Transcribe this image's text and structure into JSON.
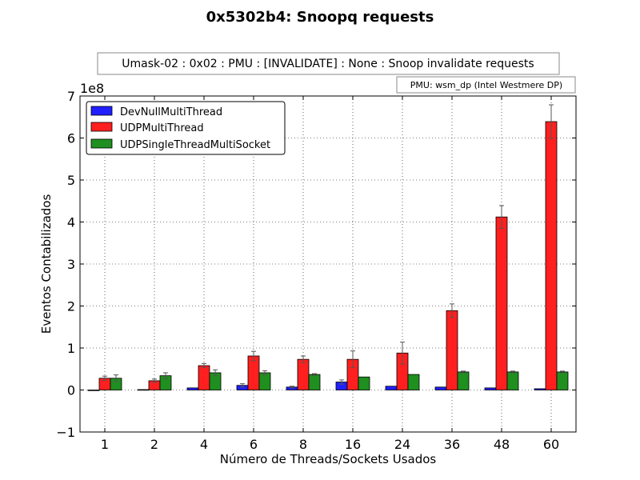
{
  "chart_data": {
    "type": "bar",
    "title": "0x5302b4: Snoopq requests",
    "subtitle": "Umask-02 : 0x02 : PMU : [INVALIDATE] : None : Snoop invalidate requests",
    "annotation": "PMU: wsm_dp (Intel Westmere DP)",
    "xlabel": "Número de Threads/Sockets Usados",
    "ylabel": "Eventos Contabilizados",
    "y_multiplier_label": "1e8",
    "ylim": [
      -1,
      7
    ],
    "yticks": [
      "−1",
      "0",
      "1",
      "2",
      "3",
      "4",
      "5",
      "6",
      "7"
    ],
    "grid": true,
    "legend_position": "upper-left",
    "categories": [
      "1",
      "2",
      "4",
      "6",
      "8",
      "16",
      "24",
      "36",
      "48",
      "60"
    ],
    "series": [
      {
        "name": "DevNullMultiThread",
        "color": "#1f1fff",
        "values": [
          0,
          0.01,
          0.05,
          0.11,
          0.07,
          0.19,
          0.09,
          0.07,
          0.05,
          0.03
        ],
        "errors": [
          0,
          0,
          0,
          0.04,
          0.02,
          0.05,
          0,
          0,
          0,
          0
        ]
      },
      {
        "name": "UDPMultiThread",
        "color": "#ff1f1f",
        "values": [
          0.28,
          0.22,
          0.58,
          0.81,
          0.73,
          0.73,
          0.88,
          1.89,
          4.12,
          6.39
        ],
        "errors": [
          0.05,
          0.04,
          0.05,
          0.11,
          0.08,
          0.2,
          0.26,
          0.16,
          0.27,
          0.4
        ]
      },
      {
        "name": "UDPSingleThreadMultiSocket",
        "color": "#1f8f1f",
        "values": [
          0.28,
          0.34,
          0.41,
          0.41,
          0.37,
          0.31,
          0.37,
          0.43,
          0.43,
          0.43
        ],
        "errors": [
          0.08,
          0.07,
          0.07,
          0.05,
          0.02,
          0,
          0,
          0.02,
          0.02,
          0.02
        ]
      }
    ]
  }
}
